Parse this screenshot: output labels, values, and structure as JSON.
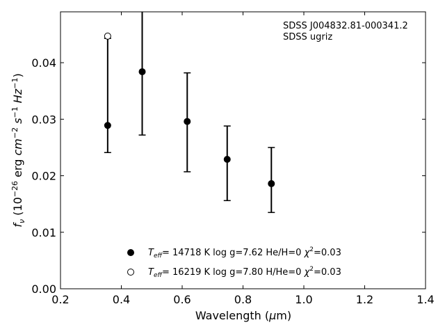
{
  "chart_data": {
    "type": "scatter",
    "annotation": [
      "SDSS J004832.81-000341.2",
      "SDSS ugriz"
    ],
    "xlabel": {
      "pre": "Wavelength (",
      "mu": "μ",
      "post": "m)"
    },
    "ylabel": {
      "f": "f",
      "sub": "ν",
      "a": " (10",
      "e1": "−26",
      "b": " erg ",
      "cm": "cm",
      "e2": "−2",
      "s": " s",
      "e3": "−1",
      "hz": " Hz",
      "e4": "−1",
      "c": ")"
    },
    "xlim": [
      0.2,
      1.4
    ],
    "ylim": [
      0.0,
      0.049
    ],
    "xticks": [
      0.2,
      0.4,
      0.6,
      0.8,
      1.0,
      1.2,
      1.4
    ],
    "xtick_labels": [
      "0.2",
      "0.4",
      "0.6",
      "0.8",
      "1.0",
      "1.2",
      "1.4"
    ],
    "yticks": [
      0.0,
      0.01,
      0.02,
      0.03,
      0.04
    ],
    "ytick_labels": [
      "0.00",
      "0.01",
      "0.02",
      "0.03",
      "0.04"
    ],
    "grid": false,
    "legend_position": "bottom-center",
    "observed": {
      "x": [
        0.3551,
        0.4686,
        0.6166,
        0.748,
        0.8932
      ],
      "y": [
        0.0289,
        0.0384,
        0.0296,
        0.0229,
        0.0186
      ],
      "yerr_low": [
        0.0241,
        0.0272,
        0.0207,
        0.0156,
        0.0135
      ],
      "yerr_high": [
        0.0443,
        0.049,
        0.0382,
        0.0288,
        0.025
      ]
    },
    "series": [
      {
        "marker": "filled-circle",
        "legend": {
          "t": "T",
          "sub": "eff",
          "rest": "= 14718 K  log g=7.62  He/H=0  ",
          "chi": "χ",
          "sup": "2",
          "end": "=0.03"
        },
        "x": [
          0.3551,
          0.4686,
          0.6166,
          0.748,
          0.8932
        ],
        "y": [
          0.0289,
          0.0384,
          0.0296,
          0.0229,
          0.0186
        ]
      },
      {
        "marker": "open-circle",
        "legend": {
          "t": "T",
          "sub": "eff",
          "rest": "= 16219 K  log g=7.80  H/He=0  ",
          "chi": "χ",
          "sup": "2",
          "end": "=0.03"
        },
        "x": [
          0.3551
        ],
        "y": [
          0.0447
        ]
      }
    ]
  }
}
